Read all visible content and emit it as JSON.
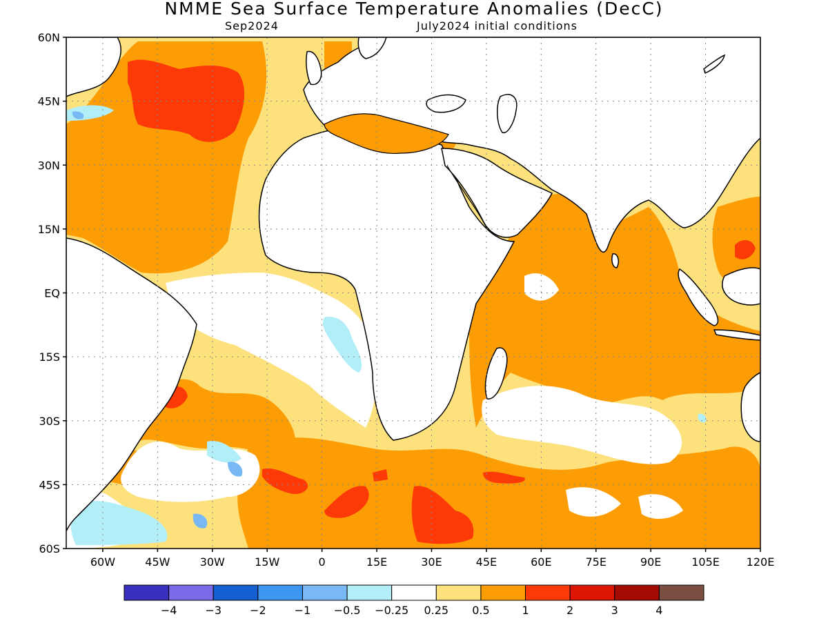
{
  "map": {
    "title": "NMME Sea Surface Temperature Anomalies (DecC)",
    "valid_month": "Sep2024",
    "initial_conditions": "July2024 initial conditions",
    "region": "Atlantic and Indian Ocean, 70W-120E, 60S-60N",
    "lon_range": [
      -70,
      120
    ],
    "lat_range": [
      -60,
      60
    ],
    "lat_ticks": [
      {
        "value": 60,
        "label": "60N"
      },
      {
        "value": 45,
        "label": "45N"
      },
      {
        "value": 30,
        "label": "30N"
      },
      {
        "value": 15,
        "label": "15N"
      },
      {
        "value": 0,
        "label": "EQ"
      },
      {
        "value": -15,
        "label": "15S"
      },
      {
        "value": -30,
        "label": "30S"
      },
      {
        "value": -45,
        "label": "45S"
      },
      {
        "value": -60,
        "label": "60S"
      }
    ],
    "lon_ticks": [
      {
        "value": -60,
        "label": "60W"
      },
      {
        "value": -45,
        "label": "45W"
      },
      {
        "value": -30,
        "label": "30W"
      },
      {
        "value": -15,
        "label": "15W"
      },
      {
        "value": 0,
        "label": "0"
      },
      {
        "value": 15,
        "label": "15E"
      },
      {
        "value": 30,
        "label": "30E"
      },
      {
        "value": 45,
        "label": "45E"
      },
      {
        "value": 60,
        "label": "60E"
      },
      {
        "value": 75,
        "label": "75E"
      },
      {
        "value": 90,
        "label": "90E"
      },
      {
        "value": 105,
        "label": "105E"
      },
      {
        "value": 120,
        "label": "120E"
      }
    ],
    "gridlines": true
  },
  "colorbar": {
    "colors": [
      "#3a2ebd",
      "#7b6be8",
      "#1560d0",
      "#3d96f0",
      "#78b8f5",
      "#b2eef8",
      "#ffffff",
      "#fce17c",
      "#fc9d05",
      "#fc3a08",
      "#dc1505",
      "#a30a02",
      "#7a4e40"
    ],
    "labels": [
      "-4",
      "-3",
      "-2",
      "-1",
      "-0.5",
      "-0.25",
      "0.25",
      "0.5",
      "1",
      "2",
      "3",
      "4"
    ]
  },
  "colors": {
    "ocean_default": "#fce17c",
    "warm": "#fc9d05",
    "hot": "#fc3a08",
    "hotter": "#dc1505",
    "neutral": "#ffffff",
    "cool": "#b2eef8",
    "cooler": "#78b8f5",
    "land": "#ffffff",
    "coast": "#000000"
  }
}
